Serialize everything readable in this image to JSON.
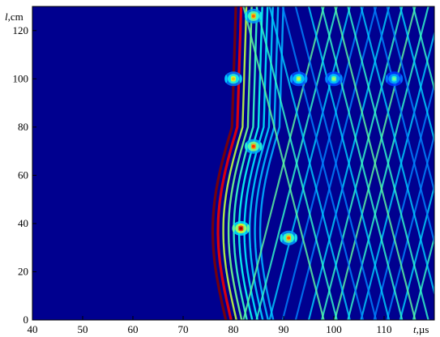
{
  "chart_data": {
    "type": "heatmap",
    "title": "",
    "xlabel": {
      "symbol": "t",
      "unit": ",µs"
    },
    "ylabel": {
      "symbol": "l",
      "unit": ",cm"
    },
    "xlim": [
      40,
      120
    ],
    "ylim": [
      0,
      130
    ],
    "xticks": [
      40,
      50,
      60,
      70,
      80,
      90,
      100,
      110
    ],
    "yticks": [
      0,
      20,
      40,
      60,
      80,
      100,
      120
    ],
    "grid": false,
    "colormap": "jet",
    "background_color": "#00008f",
    "wave_fronts": [
      {
        "name": "direct-front",
        "x_at_bottom": 78.5,
        "x_at_top": 80.5,
        "curvature": "bulge-left",
        "peak_intensity": 1.0
      },
      {
        "name": "reflected-up",
        "x_start": 82,
        "x_end": 118,
        "direction": "rising",
        "peak_intensity": 0.55
      },
      {
        "name": "reflected-down",
        "x_start": 82,
        "x_end": 118,
        "direction": "falling",
        "peak_intensity": 0.55
      }
    ],
    "hotspots": [
      {
        "t": 81.5,
        "l": 38,
        "intensity": 1.0
      },
      {
        "t": 84,
        "l": 72,
        "intensity": 0.85
      },
      {
        "t": 84,
        "l": 126,
        "intensity": 0.8
      },
      {
        "t": 80,
        "l": 100,
        "intensity": 0.7
      },
      {
        "t": 91,
        "l": 34,
        "intensity": 0.8
      },
      {
        "t": 93,
        "l": 100,
        "intensity": 0.6
      },
      {
        "t": 100,
        "l": 100,
        "intensity": 0.55
      },
      {
        "t": 112,
        "l": 100,
        "intensity": 0.5
      }
    ]
  }
}
